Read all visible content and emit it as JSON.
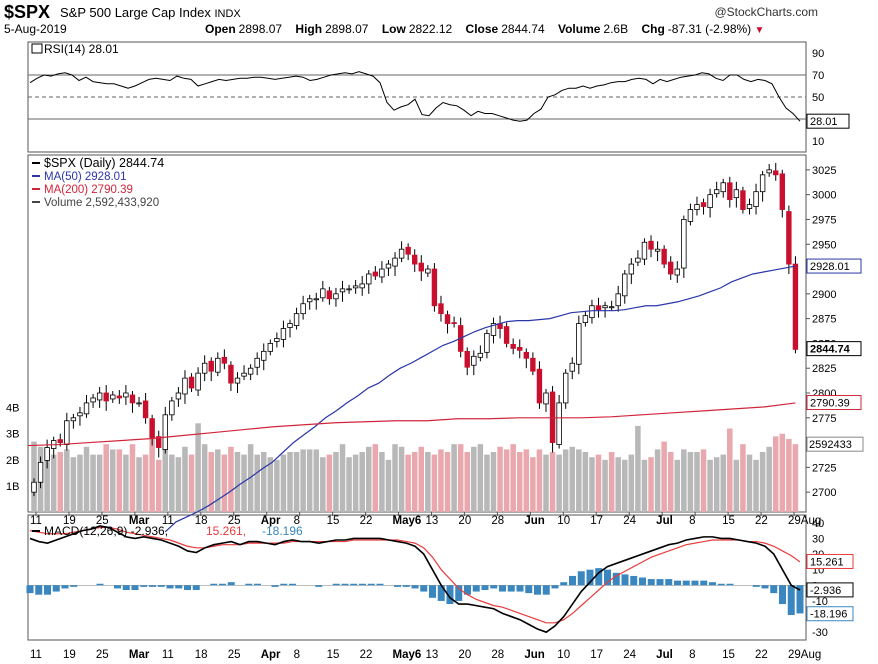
{
  "header": {
    "symbol": "$SPX",
    "name": "S&P 500 Large Cap Index",
    "exchange": "INDX",
    "date": "5-Aug-2019",
    "open_label": "Open",
    "open": "2898.07",
    "high_label": "High",
    "high": "2898.07",
    "low_label": "Low",
    "low": "2822.12",
    "close_label": "Close",
    "close": "2844.74",
    "volume_label": "Volume",
    "volume": "2.6B",
    "chg_label": "Chg",
    "chg": "-87.31 (-2.98%)",
    "logo": "@StockCharts.com"
  },
  "colors": {
    "up": "#ffffff",
    "down": "#c8102e",
    "ma50": "#2a36a8",
    "ma200": "#d1263a",
    "rsi": "#000000",
    "macd": "#000000",
    "signal": "#e83c3c",
    "hist": "#3a87c0",
    "vol_up": "#b8b8b8",
    "vol_down": "#e9a8ae"
  },
  "chart_data": [
    {
      "type": "line",
      "label": "RSI(14) 28.01",
      "y_ticks": [
        "90",
        "70",
        "50",
        "30",
        "10"
      ],
      "last_label": "28.01",
      "ylim": [
        0,
        100
      ],
      "guides": [
        70,
        50,
        30
      ],
      "values": [
        63,
        67,
        70,
        69,
        71,
        72,
        70,
        65,
        68,
        64,
        63,
        62,
        62,
        60,
        58,
        60,
        63,
        66,
        67,
        66,
        65,
        69,
        67,
        66,
        60,
        62,
        64,
        66,
        65,
        66,
        67,
        67,
        68,
        68,
        67,
        66,
        67,
        68,
        69,
        68,
        65,
        66,
        68,
        70,
        71,
        72,
        71,
        73,
        71,
        69,
        63,
        45,
        38,
        41,
        43,
        48,
        34,
        33,
        40,
        45,
        43,
        42,
        38,
        33,
        37,
        35,
        35,
        33,
        31,
        29,
        28,
        29,
        35,
        39,
        50,
        52,
        56,
        58,
        58,
        60,
        58,
        60,
        61,
        63,
        64,
        64,
        66,
        67,
        66,
        62,
        66,
        64,
        66,
        68,
        69,
        70,
        72,
        71,
        67,
        65,
        70,
        70,
        66,
        64,
        66,
        65,
        62,
        50,
        40,
        35,
        28
      ]
    },
    {
      "type": "candlestick",
      "legend": [
        "$SPX (Daily) 2844.74",
        "MA(50) 2928.01",
        "MA(200) 2790.39",
        "Volume 2,592,433,920"
      ],
      "y_ticks": [
        "3025",
        "3000",
        "2975",
        "2950",
        "2925",
        "2900",
        "2875",
        "2850",
        "2825",
        "2800",
        "2775",
        "2750",
        "2725",
        "2700"
      ],
      "ylim": [
        2680,
        3040
      ],
      "volume_ticks": [
        "4B",
        "3B",
        "2B",
        "1B"
      ],
      "price_labels": {
        "ma50": "2928.01",
        "close": "2844.74",
        "ma200": "2790.39",
        "volume": "2592433"
      },
      "x_labels": [
        "11",
        "19",
        "25",
        "Mar",
        "11",
        "18",
        "25",
        "Apr",
        "8",
        "15",
        "22",
        "May6",
        "13",
        "20",
        "28",
        "Jun",
        "10",
        "17",
        "24",
        "Jul",
        "8",
        "15",
        "22",
        "29Aug"
      ],
      "close": [
        2710,
        2730,
        2745,
        2752,
        2750,
        2772,
        2775,
        2780,
        2790,
        2795,
        2800,
        2792,
        2798,
        2795,
        2800,
        2790,
        2790,
        2775,
        2755,
        2745,
        2778,
        2792,
        2800,
        2815,
        2805,
        2820,
        2830,
        2822,
        2835,
        2830,
        2810,
        2815,
        2820,
        2825,
        2835,
        2842,
        2850,
        2855,
        2865,
        2870,
        2880,
        2890,
        2895,
        2895,
        2905,
        2895,
        2900,
        2905,
        2905,
        2908,
        2910,
        2920,
        2918,
        2925,
        2930,
        2936,
        2945,
        2940,
        2930,
        2923,
        2925,
        2888,
        2880,
        2870,
        2870,
        2842,
        2826,
        2837,
        2840,
        2860,
        2870,
        2865,
        2850,
        2845,
        2843,
        2835,
        2822,
        2790,
        2800,
        2750,
        2790,
        2820,
        2830,
        2870,
        2878,
        2888,
        2884,
        2888,
        2887,
        2900,
        2920,
        2930,
        2936,
        2952,
        2945,
        2945,
        2930,
        2920,
        2925,
        2975,
        2985,
        2990,
        2988,
        3000,
        3005,
        3012,
        2995,
        3005,
        2985,
        2990,
        3003,
        3020,
        3025,
        3020,
        2985,
        2930,
        2844
      ],
      "ma50": [
        2660,
        2670,
        2675,
        2680,
        2686,
        2693,
        2700,
        2708,
        2715,
        2723,
        2730,
        2740,
        2750,
        2758,
        2766,
        2775,
        2782,
        2790,
        2797,
        2805,
        2810,
        2818,
        2825,
        2830,
        2836,
        2842,
        2848,
        2852,
        2857,
        2862,
        2866,
        2869,
        2872,
        2873,
        2873,
        2874,
        2875,
        2878,
        2881,
        2882,
        2883,
        2883,
        2883,
        2884,
        2886,
        2888,
        2888,
        2890,
        2892,
        2895,
        2898,
        2902,
        2906,
        2912,
        2916,
        2920,
        2922,
        2924,
        2926,
        2928
      ],
      "ma200": [
        2747,
        2748,
        2750,
        2752,
        2754,
        2757,
        2760,
        2763,
        2766,
        2768,
        2770,
        2771,
        2772,
        2772,
        2774,
        2774,
        2775,
        2775,
        2775,
        2776,
        2778,
        2780,
        2782,
        2784,
        2786,
        2790
      ],
      "volume_b": [
        2.7,
        2.5,
        2.4,
        2.2,
        2.3,
        2.4,
        2.1,
        2.2,
        2.5,
        2.2,
        2.2,
        2.6,
        2.4,
        2.4,
        2.2,
        2.6,
        2.1,
        2.2,
        3.6,
        2.0,
        2.7,
        2.2,
        2.1,
        2.5,
        2.2,
        3.4,
        2.6,
        2.3,
        2.4,
        2.2,
        2.5,
        2.3,
        2.2,
        2.6,
        2.2,
        2.3,
        2.1,
        2.0,
        2.2,
        2.3,
        2.3,
        2.4,
        2.4,
        2.4,
        2.1,
        2.2,
        2.3,
        2.6,
        2.1,
        2.2,
        2.3,
        2.5,
        2.6,
        2.3,
        2.0,
        2.6,
        2.5,
        2.2,
        2.3,
        2.5,
        2.3,
        2.2,
        2.4,
        2.3,
        2.6,
        2.6,
        2.3,
        2.5,
        2.6,
        2.2,
        2.3,
        2.5,
        2.4,
        2.6,
        2.3,
        2.4,
        2.1,
        2.4,
        2.2,
        2.3,
        2.2,
        2.4,
        2.5,
        2.4,
        2.3,
        2.1,
        2.2,
        2.0,
        2.3,
        2.1,
        2.0,
        2.2,
        3.3,
        2.0,
        2.1,
        2.4,
        2.7,
        2.3,
        2.0,
        2.4,
        2.3,
        2.3,
        2.4,
        2.0,
        2.1,
        2.2,
        3.2,
        2.0,
        2.6,
        2.2,
        2.0,
        2.3,
        2.5,
        2.9,
        3.0,
        2.8,
        2.6
      ]
    },
    {
      "type": "line",
      "label_macd": "MACD(12,26,9) -2.936",
      "label_signal": "15.261",
      "label_hist": "-18.196",
      "y_ticks": [
        "40",
        "30",
        "20",
        "10",
        "0",
        "-10",
        "-20",
        "-30"
      ],
      "ylim": [
        -35,
        45
      ],
      "last_labels": {
        "signal": "15.261",
        "macd": "-2.936",
        "hist": "-18.196"
      },
      "macd": [
        30,
        28,
        27,
        29,
        31,
        33,
        35,
        36,
        38,
        37,
        34,
        31,
        30,
        31,
        30,
        29,
        27,
        25,
        22,
        21,
        24,
        26,
        27,
        28,
        26,
        28,
        28,
        27,
        26,
        28,
        29,
        28,
        28,
        27,
        28,
        29,
        29,
        30,
        30,
        30,
        30,
        29,
        28,
        27,
        25,
        20,
        10,
        0,
        -8,
        -12,
        -12,
        -13,
        -14,
        -15,
        -18,
        -20,
        -22,
        -25,
        -28,
        -30,
        -26,
        -20,
        -12,
        -4,
        2,
        8,
        12,
        14,
        16,
        18,
        20,
        22,
        24,
        26,
        27,
        29,
        30,
        31,
        31,
        30,
        30,
        29,
        28,
        27,
        25,
        20,
        10,
        0,
        -3
      ],
      "signal": [
        35,
        34,
        33,
        33,
        33,
        34,
        35,
        36,
        37,
        37,
        36,
        34,
        33,
        32,
        31,
        30,
        29,
        27,
        25,
        24,
        24,
        25,
        26,
        26,
        26,
        27,
        27,
        27,
        27,
        27,
        28,
        28,
        28,
        28,
        28,
        28,
        28,
        29,
        29,
        29,
        29,
        29,
        29,
        28,
        27,
        24,
        18,
        10,
        4,
        -2,
        -6,
        -9,
        -11,
        -13,
        -14,
        -16,
        -18,
        -20,
        -22,
        -24,
        -24,
        -22,
        -18,
        -13,
        -8,
        -3,
        2,
        6,
        9,
        12,
        15,
        18,
        20,
        22,
        24,
        26,
        27,
        28,
        29,
        29,
        29,
        29,
        28,
        28,
        27,
        25,
        22,
        19,
        15
      ],
      "hist": [
        -5,
        -6,
        -6,
        -4,
        -2,
        -1,
        0,
        0,
        1,
        0,
        -2,
        -3,
        -3,
        -1,
        -1,
        -1,
        -2,
        -2,
        -3,
        -3,
        0,
        1,
        1,
        2,
        0,
        1,
        1,
        0,
        -1,
        1,
        1,
        0,
        0,
        -1,
        0,
        1,
        1,
        1,
        1,
        1,
        1,
        0,
        -1,
        -1,
        -2,
        -4,
        -8,
        -10,
        -12,
        -10,
        -6,
        -4,
        -3,
        -2,
        -4,
        -4,
        -4,
        -5,
        -6,
        -6,
        -2,
        2,
        6,
        9,
        10,
        11,
        10,
        8,
        7,
        6,
        5,
        4,
        4,
        4,
        3,
        3,
        3,
        3,
        2,
        1,
        1,
        0,
        0,
        -1,
        -2,
        -5,
        -12,
        -19,
        -18
      ]
    }
  ]
}
